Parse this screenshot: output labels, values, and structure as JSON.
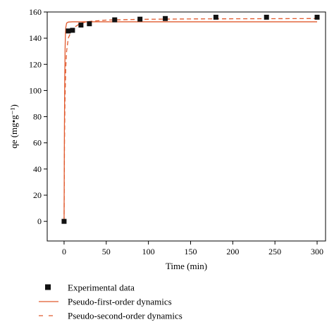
{
  "chart_data": {
    "type": "scatter",
    "title": "",
    "xlabel": "Time (min)",
    "ylabel": "qe (mg•g⁻¹)",
    "xlim": [
      -20,
      310
    ],
    "ylim": [
      -15,
      160
    ],
    "xticks": [
      0,
      50,
      100,
      150,
      200,
      250,
      300
    ],
    "yticks": [
      0,
      20,
      40,
      60,
      80,
      100,
      120,
      140,
      160
    ],
    "grid": false,
    "legend_position": "bottom",
    "series": [
      {
        "name": "Experimental data",
        "kind": "points",
        "marker": "square",
        "color": "#111111",
        "x": [
          0,
          5,
          10,
          20,
          30,
          60,
          90,
          120,
          180,
          240,
          300
        ],
        "y": [
          0,
          145.5,
          146,
          150,
          151,
          154,
          154.5,
          155,
          156,
          156,
          156
        ]
      },
      {
        "name": "Pseudo-first-order dynamics",
        "kind": "line",
        "style": "solid",
        "color": "#e15a2e",
        "x": [
          0,
          0.4,
          0.8,
          1.2,
          1.6,
          2,
          3,
          5,
          10,
          20,
          50,
          100,
          150,
          200,
          250,
          300
        ],
        "y": [
          0,
          70,
          110,
          132,
          143,
          148,
          151.5,
          152.3,
          152.5,
          152.5,
          152.5,
          152.5,
          152.5,
          152.5,
          152.5,
          152.5
        ]
      },
      {
        "name": "Pseudo-second-order dynamics",
        "kind": "line",
        "style": "dashed",
        "color": "#e15a2e",
        "x": [
          0,
          0.5,
          1,
          2,
          3,
          5,
          10,
          20,
          30,
          50,
          90,
          150,
          200,
          250,
          300
        ],
        "y": [
          0,
          60,
          90,
          118,
          130,
          140,
          147.5,
          151.5,
          152.8,
          153.8,
          154.4,
          154.7,
          154.8,
          154.9,
          155
        ]
      }
    ]
  }
}
